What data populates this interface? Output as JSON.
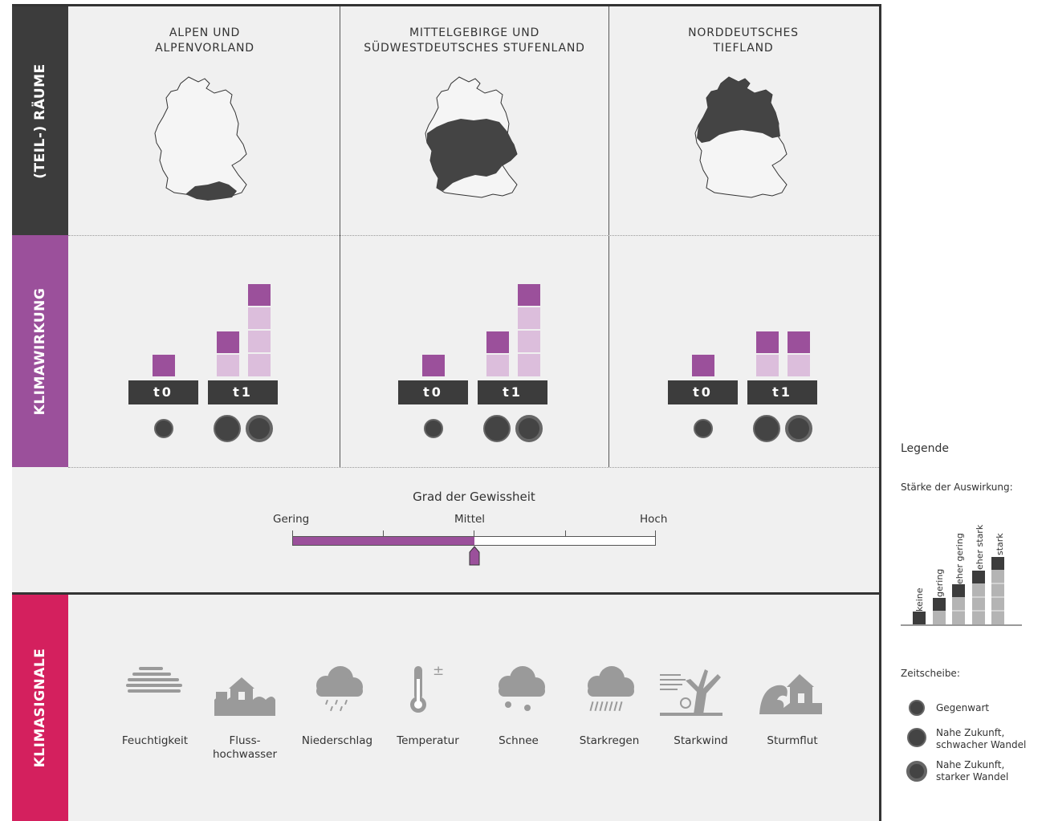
{
  "sections": {
    "raeume": "(TEIL-) RÄUME",
    "klimawirkung": "KLIMAWIRKUNG",
    "klimasignale": "KLIMASIGNALE"
  },
  "regions": [
    {
      "title_line1": "ALPEN UND",
      "title_line2": "ALPENVORLAND",
      "t0": "t0",
      "t1": "t1",
      "levels": {
        "t0": "gering",
        "t1_weak": "eher gering",
        "t1_strong": "stark"
      }
    },
    {
      "title_line1": "MITTELGEBIRGE UND",
      "title_line2": "SÜDWESTDEUTSCHES STUFENLAND",
      "t0": "t0",
      "t1": "t1",
      "levels": {
        "t0": "gering",
        "t1_weak": "eher gering",
        "t1_strong": "stark"
      }
    },
    {
      "title_line1": "NORDDEUTSCHES",
      "title_line2": "TIEFLAND",
      "t0": "t0",
      "t1": "t1",
      "levels": {
        "t0": "gering",
        "t1_weak": "eher gering",
        "t1_strong": "eher gering"
      }
    }
  ],
  "certainty": {
    "title": "Grad der Gewissheit",
    "low": "Gering",
    "mid": "Mittel",
    "high": "Hoch",
    "value_fraction": 0.5
  },
  "signals": [
    {
      "icon": "humidity-icon",
      "label_line1": "Feuchtigkeit",
      "label_line2": ""
    },
    {
      "icon": "river-flood-icon",
      "label_line1": "Fluss-",
      "label_line2": "hochwasser"
    },
    {
      "icon": "precipitation-icon",
      "label_line1": "Niederschlag",
      "label_line2": ""
    },
    {
      "icon": "temperature-icon",
      "label_line1": "Temperatur",
      "label_line2": ""
    },
    {
      "icon": "snow-icon",
      "label_line1": "Schnee",
      "label_line2": ""
    },
    {
      "icon": "heavy-rain-icon",
      "label_line1": "Starkregen",
      "label_line2": ""
    },
    {
      "icon": "strong-wind-icon",
      "label_line1": "Starkwind",
      "label_line2": ""
    },
    {
      "icon": "storm-surge-icon",
      "label_line1": "Sturmflut",
      "label_line2": ""
    }
  ],
  "temperature_symbol": "±",
  "legend": {
    "title": "Legende",
    "strength_title": "Stärke der Auswirkung:",
    "levels": [
      "keine",
      "gering",
      "eher gering",
      "eher stark",
      "stark"
    ],
    "time_title": "Zeitscheibe:",
    "time_items": [
      {
        "line1": "Gegenwart",
        "line2": ""
      },
      {
        "line1": "Nahe Zukunft,",
        "line2": "schwacher Wandel"
      },
      {
        "line1": "Nahe Zukunft,",
        "line2": "starker Wandel"
      }
    ]
  },
  "colors": {
    "dark": "#3c3c3c",
    "purple": "#9b509b",
    "light_purple": "#dcbedc",
    "crimson": "#d4205e",
    "panel": "#f0f0f0",
    "icon_gray": "#9a9a9a"
  }
}
